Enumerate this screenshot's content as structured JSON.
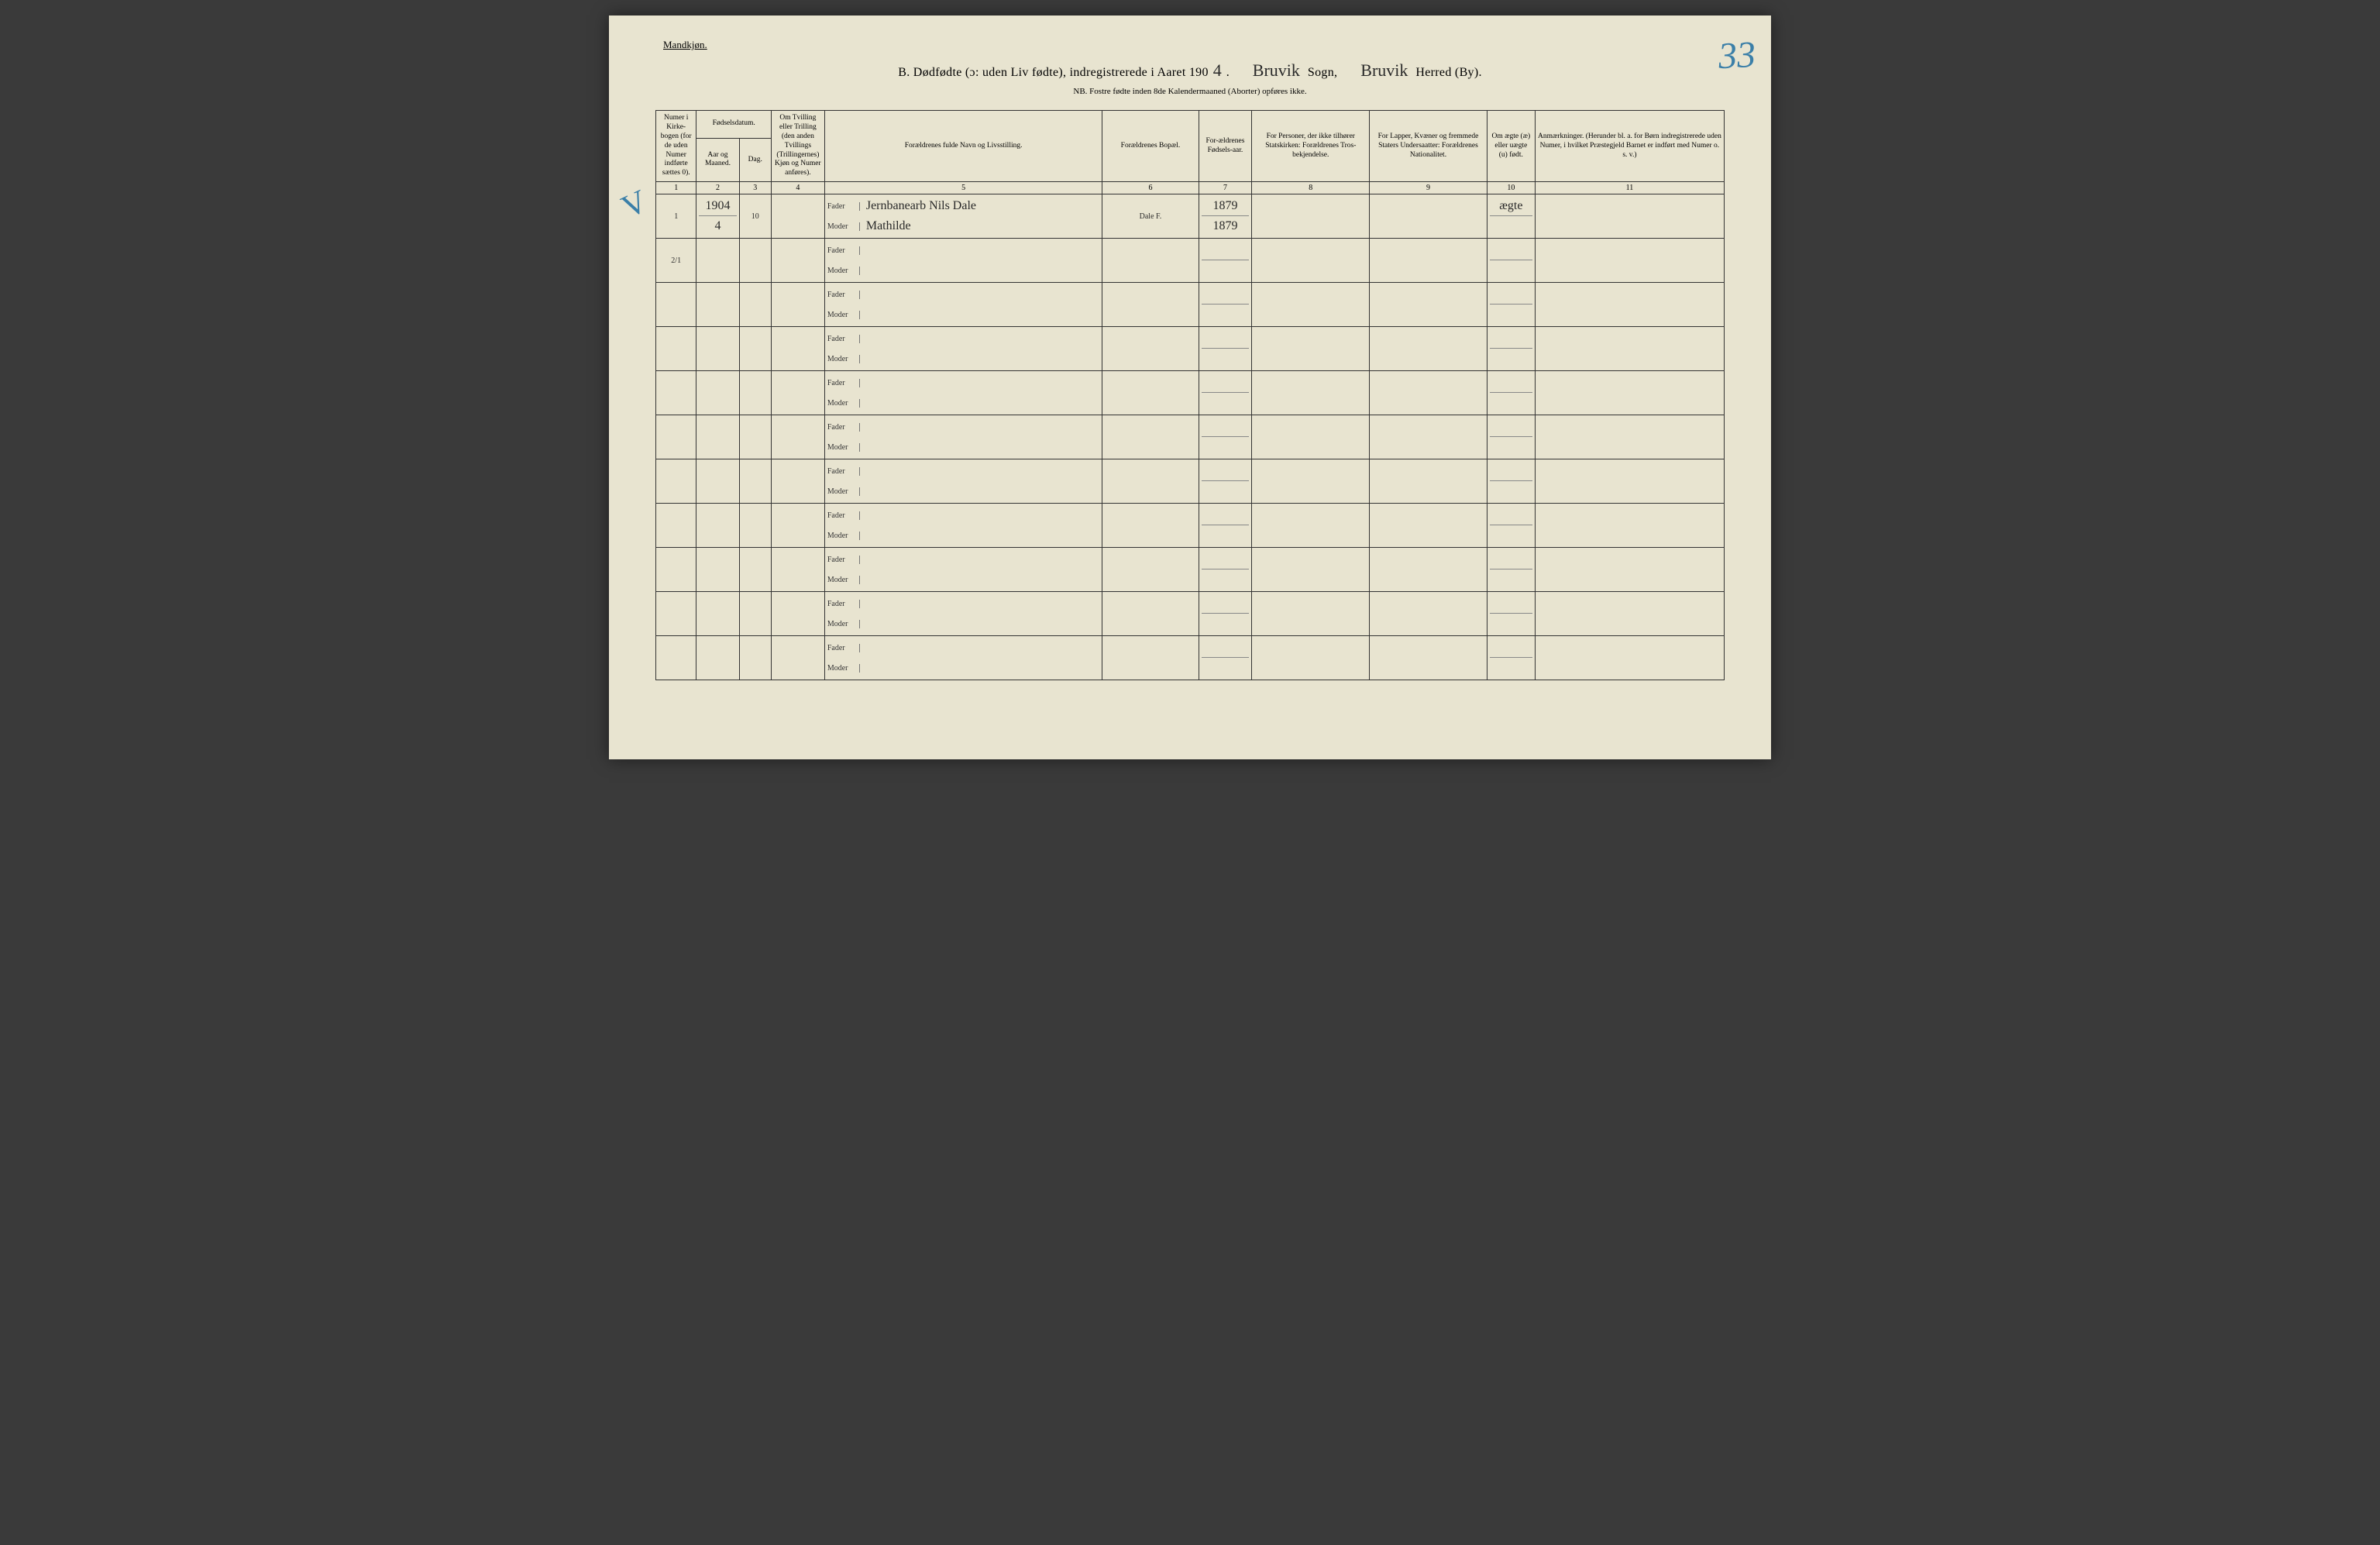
{
  "header": {
    "gender_label": "Mandkjøn.",
    "title_prefix": "B.   Dødfødte (ɔ: uden Liv fødte), indregistrerede i Aaret 190",
    "year_suffix_hand": "4",
    "sogn_label": "Sogn,",
    "sogn_hand": "Bruvik",
    "herred_label": "Herred (By).",
    "herred_hand": "Bruvik",
    "page_number_hand": "33",
    "nb_line": "NB.  Fostre fødte inden 8de Kalendermaaned (Aborter) opføres ikke."
  },
  "columns": {
    "c1": "Numer i Kirke-bogen (for de uden Numer indførte sættes 0).",
    "c2_group": "Fødselsdatum.",
    "c2": "Aar og Maaned.",
    "c3": "Dag.",
    "c4": "Om Tvilling eller Trilling (den anden Tvillings (Trillingernes) Kjøn og Numer anføres).",
    "c5": "Forældrenes fulde Navn og Livsstilling.",
    "c6": "Forældrenes Bopæl.",
    "c7": "For-ældrenes Fødsels-aar.",
    "c8": "For Personer, der ikke tilhører Statskirken: Forældrenes Tros-bekjendelse.",
    "c9": "For Lapper, Kvæner og fremmede Staters Undersaatter: Forældrenes Nationalitet.",
    "c10": "Om ægte (æ) eller uægte (u) født.",
    "c11": "Anmærkninger. (Herunder bl. a. for Børn indregistrerede uden Numer, i hvilket Præstegjeld Barnet er indført med Numer o. s. v.)",
    "nums": [
      "1",
      "2",
      "3",
      "4",
      "5",
      "6",
      "7",
      "8",
      "9",
      "10",
      "11"
    ]
  },
  "labels": {
    "fader": "Fader",
    "moder": "Moder"
  },
  "rows": [
    {
      "num": "1",
      "aar_mnd": "1904\n4",
      "dag": "10",
      "tvilling": "",
      "fader": "Jernbanearb Nils Dale",
      "moder": "Mathilde",
      "bopael": "Dale F.",
      "f_aar_fader": "1879",
      "f_aar_moder": "1879",
      "tros": "",
      "nat": "",
      "aegte": "ægte",
      "anm": ""
    },
    {
      "num_fraction": "2/1"
    }
  ],
  "margin_mark": "V",
  "blank_row_count": 9
}
